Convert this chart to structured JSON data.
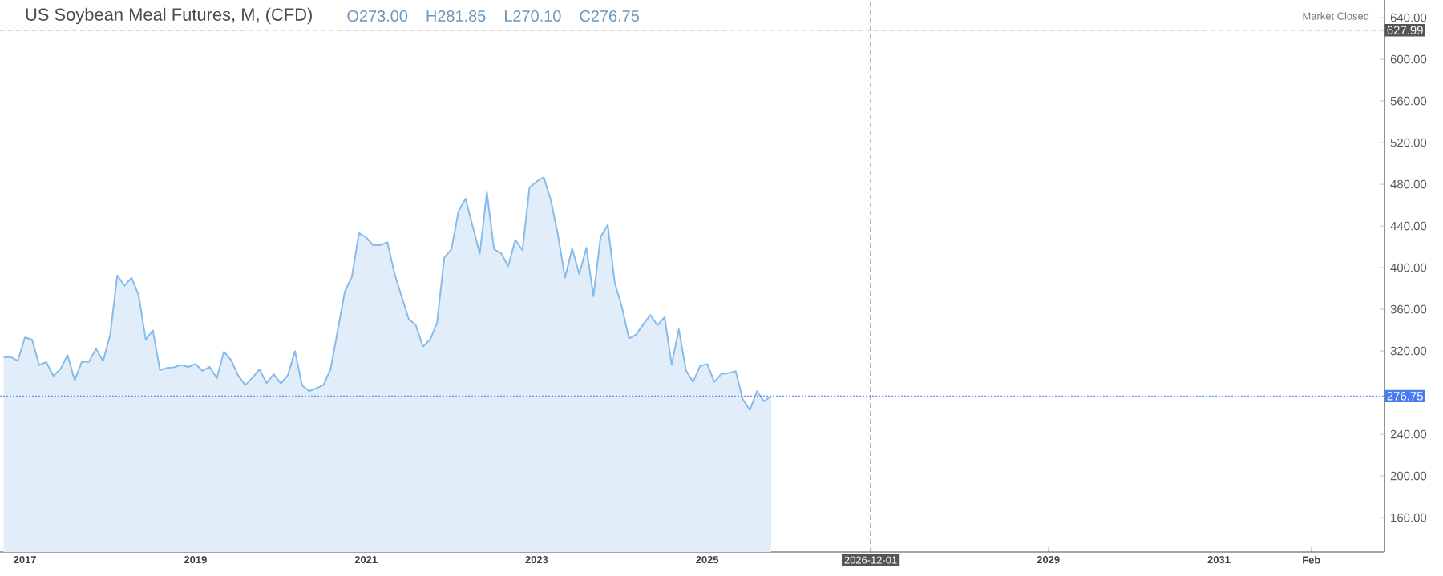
{
  "chart_data": {
    "type": "area",
    "title": "US Soybean Meal Futures, M, (CFD)",
    "annotations": [
      "O273.00",
      "H281.85",
      "L270.10",
      "C276.75",
      "Market Closed"
    ],
    "x": [
      "2016-10",
      "2016-11",
      "2016-12",
      "2017-01",
      "2017-02",
      "2017-03",
      "2017-04",
      "2017-05",
      "2017-06",
      "2017-07",
      "2017-08",
      "2017-09",
      "2017-10",
      "2017-11",
      "2017-12",
      "2018-01",
      "2018-02",
      "2018-03",
      "2018-04",
      "2018-05",
      "2018-06",
      "2018-07",
      "2018-08",
      "2018-09",
      "2018-10",
      "2018-11",
      "2018-12",
      "2019-01",
      "2019-02",
      "2019-03",
      "2019-04",
      "2019-05",
      "2019-06",
      "2019-07",
      "2019-08",
      "2019-09",
      "2019-10",
      "2019-11",
      "2019-12",
      "2020-01",
      "2020-02",
      "2020-03",
      "2020-04",
      "2020-05",
      "2020-06",
      "2020-07",
      "2020-08",
      "2020-09",
      "2020-10",
      "2020-11",
      "2020-12",
      "2021-01",
      "2021-02",
      "2021-03",
      "2021-04",
      "2021-05",
      "2021-06",
      "2021-07",
      "2021-08",
      "2021-09",
      "2021-10",
      "2021-11",
      "2021-12",
      "2022-01",
      "2022-02",
      "2022-03",
      "2022-04",
      "2022-05",
      "2022-06",
      "2022-07",
      "2022-08",
      "2022-09",
      "2022-10",
      "2022-11",
      "2022-12",
      "2023-01",
      "2023-02",
      "2023-03",
      "2023-04",
      "2023-05",
      "2023-06",
      "2023-07",
      "2023-08",
      "2023-09",
      "2023-10",
      "2023-11",
      "2023-12",
      "2024-01",
      "2024-02",
      "2024-03",
      "2024-04",
      "2024-05",
      "2024-06",
      "2024-07",
      "2024-08",
      "2024-09",
      "2024-10",
      "2024-11",
      "2024-12",
      "2025-01",
      "2025-02",
      "2025-03",
      "2025-04",
      "2025-05",
      "2025-06",
      "2025-07",
      "2025-08",
      "2025-09",
      "2025-10"
    ],
    "series": [
      {
        "color": "#86bbea",
        "values": [
          314.2,
          314.2,
          310.6,
          332.9,
          330.8,
          306.5,
          309.3,
          296.0,
          302.6,
          316.0,
          291.9,
          309.6,
          309.6,
          322.1,
          310.3,
          335.7,
          392.6,
          382.6,
          390.3,
          373.4,
          330.8,
          339.8,
          301.6,
          303.7,
          304.4,
          306.5,
          304.7,
          307.5,
          300.9,
          304.7,
          293.9,
          319.3,
          311.4,
          296.5,
          287.3,
          294.2,
          302.4,
          289.3,
          297.8,
          288.8,
          296.8,
          319.8,
          287.0,
          281.4,
          284.2,
          287.3,
          302.4,
          339.1,
          376.8,
          391.1,
          433.2,
          429.1,
          421.6,
          421.6,
          424.4,
          394.2,
          372.4,
          350.6,
          344.7,
          324.2,
          330.8,
          347.3,
          409.6,
          417.5,
          453.9,
          466.2,
          439.8,
          413.4,
          472.4,
          417.8,
          413.9,
          401.4,
          426.8,
          416.8,
          477.0,
          482.6,
          486.8,
          464.7,
          431.4,
          390.3,
          418.5,
          393.7,
          419.1,
          372.4,
          429.6,
          441.1,
          385.2,
          362.1,
          331.9,
          335.7,
          345.5,
          354.4,
          344.7,
          352.4,
          307.0,
          340.9,
          301.6,
          290.3,
          305.7,
          307.5,
          290.3,
          298.0,
          298.8,
          300.6,
          273.7,
          263.4,
          281.4,
          271.6,
          276.75
        ]
      }
    ],
    "xlim": [
      "2016-09-16",
      "2032-12-10"
    ],
    "xticks": [
      {
        "value": "2017",
        "label": "2017"
      },
      {
        "value": "2019",
        "label": "2019"
      },
      {
        "value": "2021",
        "label": "2021"
      },
      {
        "value": "2023",
        "label": "2023"
      },
      {
        "value": "2025",
        "label": "2025"
      },
      {
        "value": "2029",
        "label": "2029"
      },
      {
        "value": "2031",
        "label": "2031"
      },
      {
        "value": "2032-02",
        "label": "Feb"
      }
    ],
    "ylim": [
      127,
      657
    ],
    "yticks": [
      {
        "value": 160,
        "label": "160.00"
      },
      {
        "value": 200,
        "label": "200.00"
      },
      {
        "value": 240,
        "label": "240.00"
      },
      {
        "value": 320,
        "label": "320.00"
      },
      {
        "value": 360,
        "label": "360.00"
      },
      {
        "value": 400,
        "label": "400.00"
      },
      {
        "value": 440,
        "label": "440.00"
      },
      {
        "value": 480,
        "label": "480.00"
      },
      {
        "value": 520,
        "label": "520.00"
      },
      {
        "value": 560,
        "label": "560.00"
      },
      {
        "value": 600,
        "label": "600.00"
      },
      {
        "value": 640,
        "label": "640.00"
      }
    ],
    "ref_lines": [
      {
        "axis": "y",
        "value": 627.99,
        "label": "627.99",
        "color": "#555555",
        "line_style": "dashed"
      },
      {
        "axis": "y",
        "value": 276.75,
        "label": "276.75",
        "color": "#4a7cf0",
        "line_style": "dotted"
      },
      {
        "axis": "x",
        "value": "2026-12-01",
        "label": "2026-12-01",
        "color": "#555555",
        "line_style": "dashed"
      }
    ]
  }
}
